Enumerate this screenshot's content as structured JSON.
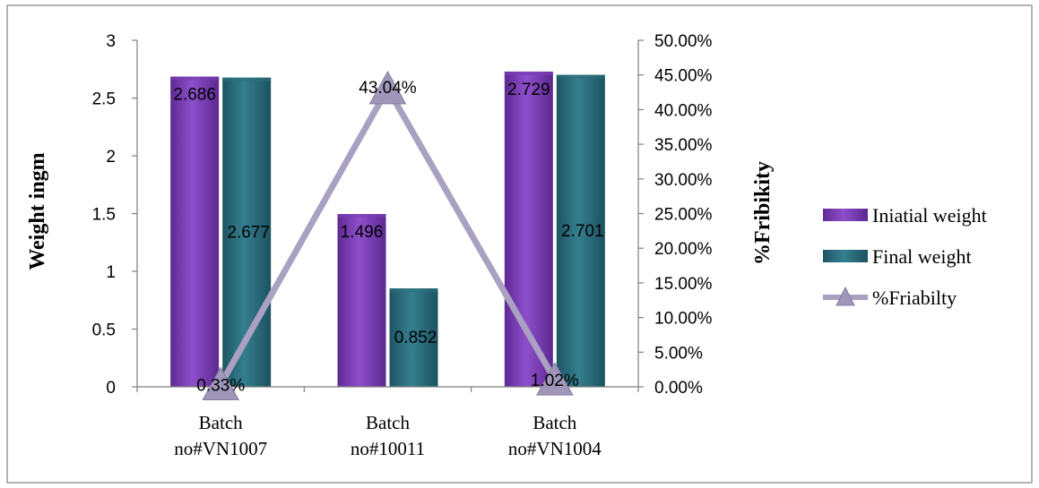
{
  "chart_data": {
    "type": "bar",
    "categories": [
      "Batch no#VN1007",
      "Batch no#10011",
      "Batch no#VN1004"
    ],
    "category_lines": [
      [
        "Batch",
        "no#VN1007"
      ],
      [
        "Batch",
        "no#10011"
      ],
      [
        "Batch",
        "no#VN1004"
      ]
    ],
    "series": [
      {
        "name": "Iniatial weight",
        "values": [
          2.686,
          1.496,
          2.729
        ],
        "value_labels": [
          "2.686",
          "1.496",
          "2.729"
        ],
        "color": "#7b3cb4",
        "axis": "left"
      },
      {
        "name": "Final weight",
        "values": [
          2.677,
          0.852,
          2.701
        ],
        "value_labels": [
          "2.677",
          "0.852",
          "2.701"
        ],
        "color": "#2c6e7c",
        "axis": "left"
      },
      {
        "name": "%Friabilty",
        "type": "line",
        "values": [
          0.33,
          43.04,
          1.02
        ],
        "value_labels": [
          "0.33%",
          "43.04%",
          "1.02%"
        ],
        "color": "#aaa0c2",
        "marker": "triangle",
        "axis": "right"
      }
    ],
    "ylabel": "Weight ingm",
    "y2label": "%Fribikity",
    "ylim": [
      0,
      3
    ],
    "y2lim": [
      0,
      50
    ],
    "yticks": [
      "0",
      "0.5",
      "1",
      "1.5",
      "2",
      "2.5",
      "3"
    ],
    "y2ticks": [
      "0.00%",
      "5.00%",
      "10.00%",
      "15.00%",
      "20.00%",
      "25.00%",
      "30.00%",
      "35.00%",
      "40.00%",
      "45.00%",
      "50.00%"
    ],
    "legend_position": "right",
    "grid": false
  }
}
